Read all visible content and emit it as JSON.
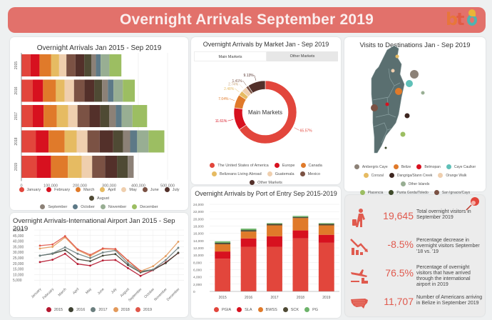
{
  "header": {
    "title": "Overnight Arrivals September 2019",
    "logo_text": "bt"
  },
  "colors": {
    "header_bg": "#e2716b",
    "accent": "#e05a4e"
  },
  "month_colors": [
    "#e2463c",
    "#d7111f",
    "#e07a2a",
    "#e6bb62",
    "#efcfae",
    "#7b5244",
    "#53302a",
    "#4f4a34",
    "#8c8177",
    "#5d7987",
    "#98ae93",
    "#9cbe62"
  ],
  "chart_data": [
    {
      "id": "monthly_bar",
      "type": "bar",
      "orientation": "horizontal",
      "stacked": true,
      "title": "Overnight Arrivals Jan 2015 - Sep 2019",
      "categories": [
        "2015",
        "2016",
        "2017",
        "2018",
        "2019"
      ],
      "xlim": [
        0,
        500000
      ],
      "xticks": [
        "0",
        "100,000",
        "200,000",
        "300,000",
        "400,000",
        "500,000"
      ],
      "xtick_values": [
        0,
        100000,
        200000,
        300000,
        400000,
        500000
      ],
      "grid": true,
      "legend_position": "bottom",
      "series": [
        {
          "name": "January",
          "values": [
            31000,
            39000,
            39000,
            49000,
            52000
          ]
        },
        {
          "name": "February",
          "values": [
            31000,
            35000,
            37000,
            44000,
            49000
          ]
        },
        {
          "name": "March",
          "values": [
            40000,
            44000,
            45000,
            55000,
            58000
          ]
        },
        {
          "name": "April",
          "values": [
            27000,
            30000,
            39000,
            41000,
            47000
          ]
        },
        {
          "name": "May",
          "values": [
            25000,
            32000,
            32000,
            37000,
            36000
          ]
        },
        {
          "name": "June",
          "values": [
            31000,
            36000,
            41000,
            42000,
            44000
          ]
        },
        {
          "name": "July",
          "values": [
            30000,
            33000,
            37000,
            46000,
            41000
          ]
        },
        {
          "name": "August",
          "values": [
            24000,
            27000,
            30000,
            34000,
            37000
          ]
        },
        {
          "name": "September",
          "values": [
            16000,
            20000,
            23000,
            24000,
            20000
          ]
        },
        {
          "name": "October",
          "values": [
            16000,
            19000,
            20000,
            24000,
            null
          ]
        },
        {
          "name": "November",
          "values": [
            30000,
            32000,
            37000,
            39000,
            null
          ]
        },
        {
          "name": "December",
          "values": [
            41000,
            41000,
            50000,
            54000,
            null
          ]
        }
      ]
    },
    {
      "id": "market_donut",
      "type": "pie",
      "donut": true,
      "title": "Overnight Arrivals by Market Jan - Sep 2019",
      "center_label": "Main Markets",
      "tabs": [
        "Main Markets",
        "Other Markets"
      ],
      "active_tab": "Main Markets",
      "legend_position": "bottom",
      "slices": [
        {
          "name": "The United States of America",
          "value": 65.57,
          "label": "65.57%",
          "color": "#e2463c"
        },
        {
          "name": "Europe",
          "value": 11.61,
          "label": "11.61%",
          "color": "#d7111f"
        },
        {
          "name": "Canada",
          "value": 7.04,
          "label": "7.04%",
          "color": "#e07a2a"
        },
        {
          "name": "Belizeans Living Abroad",
          "value": 2.48,
          "label": "2.48%",
          "color": "#e6bb62"
        },
        {
          "name": "Guatemala",
          "value": 2.74,
          "label": "2.74%",
          "color": "#efcfae"
        },
        {
          "name": "Mexico",
          "value": 1.41,
          "label": "1.41%",
          "color": "#7b5244"
        },
        {
          "name": "Other Markets",
          "value": 9.13,
          "label": "9.13%",
          "color": "#53302a"
        }
      ]
    },
    {
      "id": "destinations_map",
      "type": "scatter",
      "title": "Visits to Destinations Jan - Sep 2019",
      "legend_position": "bottom",
      "legend": [
        {
          "name": "Ambergris Caye",
          "color": "#8c8177"
        },
        {
          "name": "Belize",
          "color": "#e07a2a"
        },
        {
          "name": "Belmopan",
          "color": "#d7111f"
        },
        {
          "name": "Caye Caulker",
          "color": "#5fc0b8"
        },
        {
          "name": "Corozal",
          "color": "#e6bb62"
        },
        {
          "name": "Dangriga/Stann Creek",
          "color": "#3d2620"
        },
        {
          "name": "Orange Walk",
          "color": "#efcfae"
        },
        {
          "name": "Other Islands",
          "color": "#98ae93"
        },
        {
          "name": "Placencia",
          "color": "#9cbe62"
        },
        {
          "name": "Punta Gorda/Toledo",
          "color": "#3f4a2a"
        },
        {
          "name": "San Ignacio/Cayo",
          "color": "#7b5244"
        }
      ]
    },
    {
      "id": "airport_line",
      "type": "line",
      "title": "Overnight Arrivals-International Airport Jan 2015 - Sep 2019",
      "x": [
        "January",
        "February",
        "March",
        "April",
        "May",
        "June",
        "July",
        "August",
        "September",
        "October",
        "November",
        "December"
      ],
      "ylim": [
        0,
        50000
      ],
      "yticks": [
        "5,000",
        "10,000",
        "15,000",
        "20,000",
        "25,000",
        "30,000",
        "35,000",
        "40,000",
        "45,000",
        "50,000"
      ],
      "ytick_values": [
        5000,
        10000,
        15000,
        20000,
        25000,
        30000,
        35000,
        40000,
        45000,
        50000
      ],
      "grid": true,
      "legend_position": "bottom",
      "series": [
        {
          "name": "2015",
          "color": "#b5172f",
          "values": [
            21200,
            23300,
            28700,
            19500,
            18000,
            22700,
            23100,
            15800,
            8800,
            14000,
            20800,
            29300
          ]
        },
        {
          "name": "2016",
          "color": "#3f4233",
          "values": [
            27000,
            28700,
            32000,
            23800,
            22000,
            27000,
            28400,
            18500,
            12000,
            14300,
            20300,
            29600
          ]
        },
        {
          "name": "2017",
          "color": "#6b7f7f",
          "values": [
            27000,
            29000,
            34500,
            28700,
            24800,
            29800,
            31700,
            20100,
            13000,
            14500,
            23000,
            34000
          ]
        },
        {
          "name": "2018",
          "color": "#e39a5b",
          "values": [
            33400,
            34900,
            43400,
            32000,
            26600,
            33000,
            32700,
            22300,
            13000,
            17500,
            26600,
            39500
          ]
        },
        {
          "name": "2019",
          "color": "#e0574a",
          "values": [
            36000,
            37000,
            44500,
            32700,
            27700,
            33500,
            33000,
            22700,
            13400,
            null,
            null,
            null
          ]
        }
      ]
    },
    {
      "id": "port_bar",
      "type": "bar",
      "stacked": true,
      "title": "Overnight Arrivals by Port of Entry Sep 2015-2019",
      "categories": [
        "2015",
        "2016",
        "2017",
        "2018",
        "2019"
      ],
      "ylim": [
        0,
        24000
      ],
      "yticks": [
        "0",
        "2,000",
        "4,000",
        "6,000",
        "8,000",
        "10,000",
        "12,000",
        "14,000",
        "16,000",
        "18,000",
        "20,000",
        "22,000",
        "24,000"
      ],
      "ytick_values": [
        0,
        2000,
        4000,
        6000,
        8000,
        10000,
        12000,
        14000,
        16000,
        18000,
        20000,
        22000,
        24000
      ],
      "grid": true,
      "legend_position": "bottom",
      "series": [
        {
          "name": "PGIA",
          "color": "#e2463c",
          "values": [
            9000,
            12300,
            12300,
            14600,
            13400
          ]
        },
        {
          "name": "SLA",
          "color": "#d7111f",
          "values": [
            2000,
            2300,
            2900,
            2200,
            2200
          ]
        },
        {
          "name": "BWSS",
          "color": "#e07a2a",
          "values": [
            2000,
            1900,
            3000,
            3400,
            2600
          ]
        },
        {
          "name": "SCK",
          "color": "#4f4a34",
          "values": [
            400,
            400,
            400,
            300,
            400
          ]
        },
        {
          "name": "PG",
          "color": "#6db36a",
          "values": [
            400,
            400,
            200,
            300,
            200
          ]
        }
      ]
    }
  ],
  "stats": [
    {
      "icon": "traveler-icon",
      "value": "19,645",
      "description": "Total overnight visitors in September 2019"
    },
    {
      "icon": "decrease-chart-icon",
      "value": "-8.5%",
      "description": "Percentage decrease in overnight visitors September '18 vs. '19"
    },
    {
      "icon": "airplane-arrival-icon",
      "value": "76.5%",
      "description": "Percentage of overnight visitors that have arrived through the international airport in 2019"
    },
    {
      "icon": "usa-map-icon",
      "value": "11,707",
      "description": "Number of Americans arriving in Belize in September 2019"
    }
  ]
}
